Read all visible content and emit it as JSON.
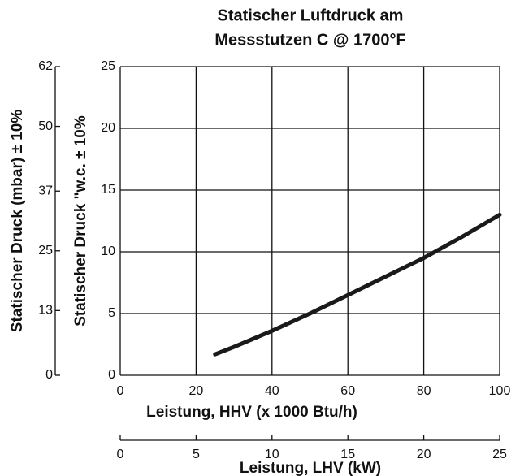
{
  "chart_data": {
    "type": "line",
    "title": [
      "Statischer Luftdruck am",
      "Messstutzen C @ 1700°F"
    ],
    "xlabel": "Leistung, HHV (x 1000 Btu/h)",
    "ylabel": "Statischer Druck \"w.c. ± 10%",
    "y2label": "Statischer Druck (mbar) ± 10%",
    "x2label": "Leistung, LHV (kW)",
    "xlim": [
      0,
      100
    ],
    "xticks": [
      0,
      20,
      40,
      60,
      80,
      100
    ],
    "ylim": [
      0,
      25
    ],
    "yticks": [
      0,
      5,
      10,
      15,
      20,
      25
    ],
    "y2lim": [
      0,
      62
    ],
    "y2ticks": [
      0,
      13,
      25,
      37,
      50,
      62
    ],
    "x2lim": [
      0,
      25
    ],
    "x2ticks": [
      0,
      5,
      10,
      15,
      20,
      25
    ],
    "grid": true,
    "series": [
      {
        "name": null,
        "color": "#1a1a1a",
        "x": [
          25,
          30,
          40,
          50,
          60,
          70,
          80,
          90,
          100
        ],
        "values": [
          1.7,
          2.3,
          3.6,
          5.0,
          6.5,
          8.0,
          9.5,
          11.2,
          13.0
        ]
      }
    ]
  }
}
